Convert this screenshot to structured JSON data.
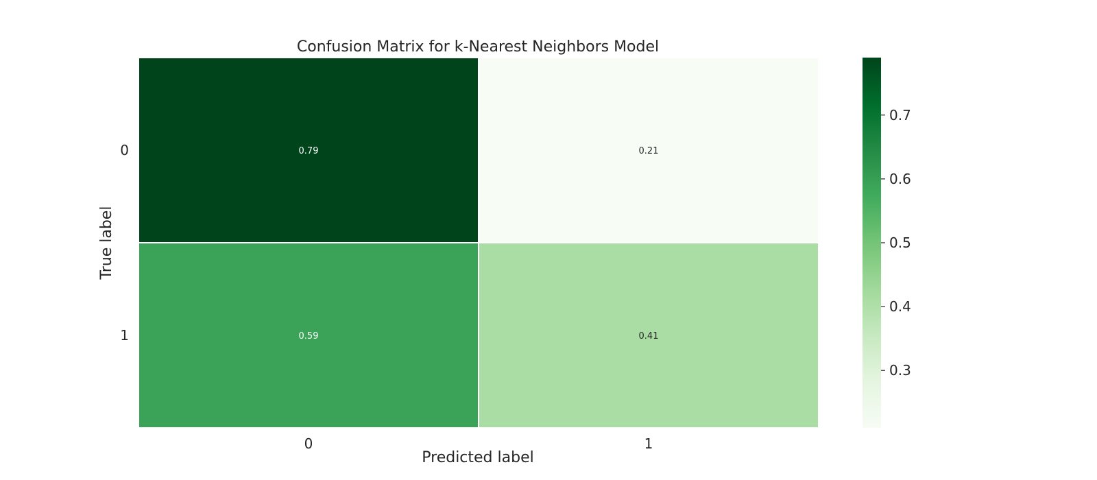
{
  "chart_data": {
    "type": "heatmap",
    "title": "Confusion Matrix for k-Nearest Neighbors Model",
    "xlabel": "Predicted label",
    "ylabel": "True label",
    "x_categories": [
      "0",
      "1"
    ],
    "y_categories": [
      "0",
      "1"
    ],
    "values": [
      [
        0.79,
        0.21
      ],
      [
        0.59,
        0.41
      ]
    ],
    "cell_labels": [
      [
        "0.79",
        "0.21"
      ],
      [
        "0.59",
        "0.41"
      ]
    ],
    "colorbar": {
      "colormap": "Greens",
      "vmin": 0.21,
      "vmax": 0.79,
      "ticks": [
        0.3,
        0.4,
        0.5,
        0.6,
        0.7
      ],
      "tick_labels": [
        "0.3",
        "0.4",
        "0.5",
        "0.6",
        "0.7"
      ]
    },
    "grid": false,
    "cell_border_color": "#ffffff"
  }
}
